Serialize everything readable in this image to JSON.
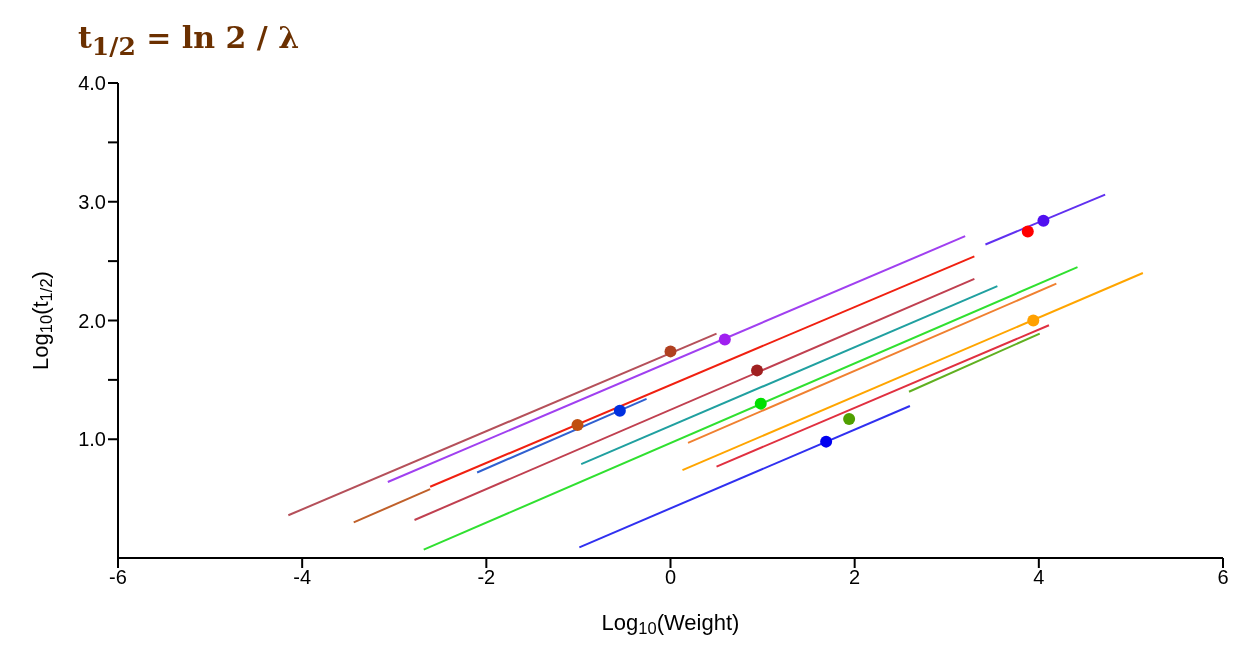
{
  "chart_data": {
    "type": "line",
    "xlabel": "Log$_{10}$(Weight)",
    "ylabel": "Log$_{10}$(t$_{1/2}$)",
    "annotations": [
      "t$_{1/2}$ = ln 2 / λ"
    ],
    "xlim": [
      -6,
      6
    ],
    "xticks": [
      -6,
      -4,
      -2,
      0,
      2,
      4,
      6
    ],
    "ylim": [
      0,
      4
    ],
    "yticks": [
      {
        "value": 1,
        "label": "1.0"
      },
      {
        "value": 1.5,
        "label": null
      },
      {
        "value": 2,
        "label": "2.0"
      },
      {
        "value": 2.5,
        "label": null
      },
      {
        "value": 3,
        "label": "3.0"
      },
      {
        "value": 3.5,
        "label": null
      },
      {
        "value": 4,
        "label": "4.0"
      }
    ],
    "grid": false,
    "line_style": "solid",
    "series": [
      {
        "color": "#b5505a",
        "x": [
          -4.15,
          0.5
        ],
        "values": [
          0.36,
          1.89
        ]
      },
      {
        "color": "#a040f0",
        "x": [
          -3.07,
          3.2
        ],
        "values": [
          0.64,
          2.71
        ]
      },
      {
        "color": "#c0602a",
        "x": [
          -3.44,
          -2.61
        ],
        "values": [
          0.3,
          0.58
        ]
      },
      {
        "color": "#f02010",
        "x": [
          -2.61,
          3.3
        ],
        "values": [
          0.6,
          2.54
        ]
      },
      {
        "color": "#3060d0",
        "x": [
          -2.1,
          -0.26
        ],
        "values": [
          0.72,
          1.34
        ]
      },
      {
        "color": "#c04050",
        "x": [
          -2.78,
          3.3
        ],
        "values": [
          0.32,
          2.35
        ]
      },
      {
        "color": "#20a0a0",
        "x": [
          -0.97,
          3.55
        ],
        "values": [
          0.79,
          2.29
        ]
      },
      {
        "color": "#30e030",
        "x": [
          -2.68,
          4.42
        ],
        "values": [
          0.07,
          2.45
        ]
      },
      {
        "color": "#f08030",
        "x": [
          0.19,
          4.19
        ],
        "values": [
          0.97,
          2.31
        ]
      },
      {
        "color": "#ffa500",
        "x": [
          0.13,
          5.13
        ],
        "values": [
          0.74,
          2.4
        ]
      },
      {
        "color": "#e03040",
        "x": [
          0.5,
          4.11
        ],
        "values": [
          0.77,
          1.96
        ]
      },
      {
        "color": "#60b020",
        "x": [
          2.59,
          4.01
        ],
        "values": [
          1.4,
          1.89
        ]
      },
      {
        "color": "#3030f0",
        "x": [
          -0.99,
          2.6
        ],
        "values": [
          0.09,
          1.28
        ]
      },
      {
        "color": "#6030f0",
        "x": [
          3.42,
          4.72
        ],
        "values": [
          2.64,
          3.06
        ]
      },
      {
        "type": "scatter",
        "x": [
          0,
          0.59,
          0.94,
          0.98,
          1.94,
          1.69,
          3.94,
          3.88,
          4.05,
          -0.55,
          -1.01
        ],
        "values": [
          1.74,
          1.84,
          1.58,
          1.3,
          1.17,
          0.98,
          2.0,
          2.75,
          2.84,
          1.24,
          1.12
        ],
        "colors": [
          "#b04020",
          "#a020f0",
          "#a02020",
          "#00e000",
          "#50a000",
          "#0000f0",
          "#ffa000",
          "#ff0000",
          "#5010f0",
          "#0030e0",
          "#c05010"
        ]
      }
    ]
  }
}
